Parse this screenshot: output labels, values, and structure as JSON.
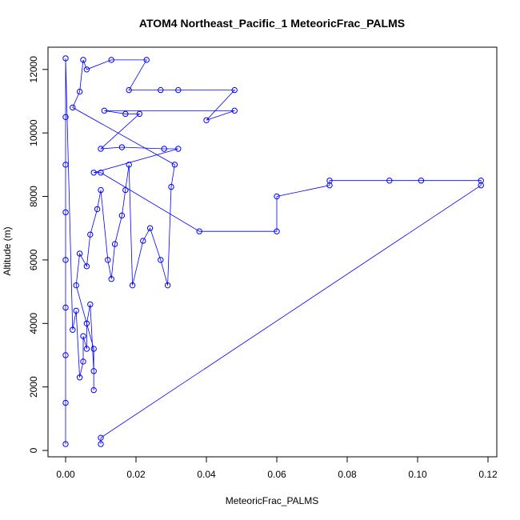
{
  "chart_data": {
    "type": "scatter",
    "title": "ATOM4 Northeast_Pacific_1 MeteoricFrac_PALMS",
    "xlabel": "MeteoricFrac_PALMS",
    "ylabel": "Altitude (m)",
    "xlim": [
      -0.005,
      0.1225
    ],
    "ylim": [
      -200,
      12700
    ],
    "xticks": [
      "0.00",
      "0.02",
      "0.04",
      "0.06",
      "0.08",
      "0.10",
      "0.12"
    ],
    "xtick_values": [
      0,
      0.02,
      0.04,
      0.06,
      0.08,
      0.1,
      0.12
    ],
    "yticks": [
      "0",
      "2000",
      "4000",
      "6000",
      "8000",
      "10000",
      "12000"
    ],
    "ytick_values": [
      0,
      2000,
      4000,
      6000,
      8000,
      10000,
      12000
    ],
    "grid": false,
    "series": [
      {
        "color": "#0000ff",
        "marker": "open-circle",
        "connected": true,
        "points": [
          [
            0.0,
            200
          ],
          [
            0.0,
            1500
          ],
          [
            0.0,
            3000
          ],
          [
            0.0,
            4500
          ],
          [
            0.0,
            6000
          ],
          [
            0.0,
            7500
          ],
          [
            0.0,
            9000
          ],
          [
            0.0,
            10500
          ],
          [
            0.0,
            12350
          ],
          [
            0.002,
            3800
          ],
          [
            0.003,
            4400
          ],
          [
            0.004,
            2300
          ],
          [
            0.005,
            2800
          ],
          [
            0.005,
            3600
          ],
          [
            0.006,
            3200
          ],
          [
            0.006,
            4000
          ],
          [
            0.007,
            4600
          ],
          [
            0.008,
            2500
          ],
          [
            0.008,
            1900
          ],
          [
            0.008,
            3200
          ],
          [
            0.003,
            5200
          ],
          [
            0.004,
            6200
          ],
          [
            0.006,
            5800
          ],
          [
            0.007,
            6800
          ],
          [
            0.009,
            7600
          ],
          [
            0.01,
            8200
          ],
          [
            0.012,
            6000
          ],
          [
            0.013,
            5400
          ],
          [
            0.014,
            6500
          ],
          [
            0.016,
            7400
          ],
          [
            0.017,
            8200
          ],
          [
            0.018,
            9000
          ],
          [
            0.019,
            5200
          ],
          [
            0.022,
            6600
          ],
          [
            0.024,
            7000
          ],
          [
            0.027,
            6000
          ],
          [
            0.029,
            5200
          ],
          [
            0.03,
            8300
          ],
          [
            0.031,
            9000
          ],
          [
            0.002,
            10800
          ],
          [
            0.004,
            11300
          ],
          [
            0.005,
            12300
          ],
          [
            0.006,
            12000
          ],
          [
            0.013,
            12300
          ],
          [
            0.023,
            12300
          ],
          [
            0.018,
            11350
          ],
          [
            0.027,
            11350
          ],
          [
            0.032,
            11350
          ],
          [
            0.048,
            11350
          ],
          [
            0.04,
            10400
          ],
          [
            0.048,
            10700
          ],
          [
            0.011,
            10700
          ],
          [
            0.017,
            10600
          ],
          [
            0.021,
            10600
          ],
          [
            0.01,
            9500
          ],
          [
            0.016,
            9550
          ],
          [
            0.028,
            9500
          ],
          [
            0.032,
            9500
          ],
          [
            0.008,
            8750
          ],
          [
            0.01,
            8750
          ],
          [
            0.038,
            6900
          ],
          [
            0.06,
            6900
          ],
          [
            0.06,
            8000
          ],
          [
            0.075,
            8350
          ],
          [
            0.075,
            8500
          ],
          [
            0.092,
            8500
          ],
          [
            0.101,
            8500
          ],
          [
            0.118,
            8500
          ],
          [
            0.118,
            8350
          ],
          [
            0.01,
            400
          ],
          [
            0.01,
            200
          ]
        ]
      }
    ]
  }
}
